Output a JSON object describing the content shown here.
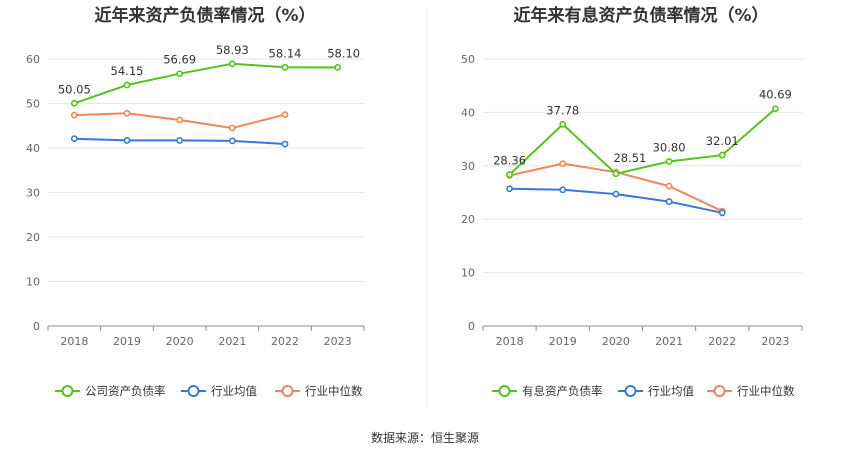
{
  "source_text": "数据来源：恒生聚源",
  "chart_data": [
    {
      "type": "line",
      "title": "近年来资产负债率情况（%）",
      "categories": [
        "2018",
        "2019",
        "2020",
        "2021",
        "2022",
        "2023"
      ],
      "ylim": [
        0,
        60
      ],
      "yticks": [
        0,
        10,
        20,
        30,
        40,
        50,
        60
      ],
      "grid": true,
      "legend_position": "bottom",
      "series": [
        {
          "name": "公司资产负债率",
          "color": "#52c41a",
          "values": [
            50.05,
            54.15,
            56.69,
            58.93,
            58.14,
            58.1
          ],
          "labels": [
            "50.05",
            "54.15",
            "56.69",
            "58.93",
            "58.14",
            "58.10"
          ]
        },
        {
          "name": "行业均值",
          "color": "#3a78d8",
          "values": [
            42.1,
            41.7,
            41.7,
            41.6,
            40.9,
            null
          ]
        },
        {
          "name": "行业中位数",
          "color": "#f0875a",
          "values": [
            47.4,
            47.8,
            46.3,
            44.5,
            47.5,
            null
          ]
        }
      ]
    },
    {
      "type": "line",
      "title": "近年来有息资产负债率情况（%）",
      "categories": [
        "2018",
        "2019",
        "2020",
        "2021",
        "2022",
        "2023"
      ],
      "ylim": [
        0,
        50
      ],
      "yticks": [
        0,
        10,
        20,
        30,
        40,
        50
      ],
      "grid": true,
      "legend_position": "bottom",
      "series": [
        {
          "name": "有息资产负债率",
          "color": "#52c41a",
          "values": [
            28.36,
            37.78,
            28.51,
            30.8,
            32.01,
            40.69
          ],
          "labels": [
            "28.36",
            "37.78",
            "28.51",
            "30.80",
            "32.01",
            "40.69"
          ]
        },
        {
          "name": "行业均值",
          "color": "#3a78d8",
          "values": [
            25.7,
            25.5,
            24.7,
            23.3,
            21.2,
            null
          ]
        },
        {
          "name": "行业中位数",
          "color": "#f0875a",
          "values": [
            28.2,
            30.4,
            28.8,
            26.2,
            21.5,
            null
          ]
        }
      ]
    }
  ]
}
